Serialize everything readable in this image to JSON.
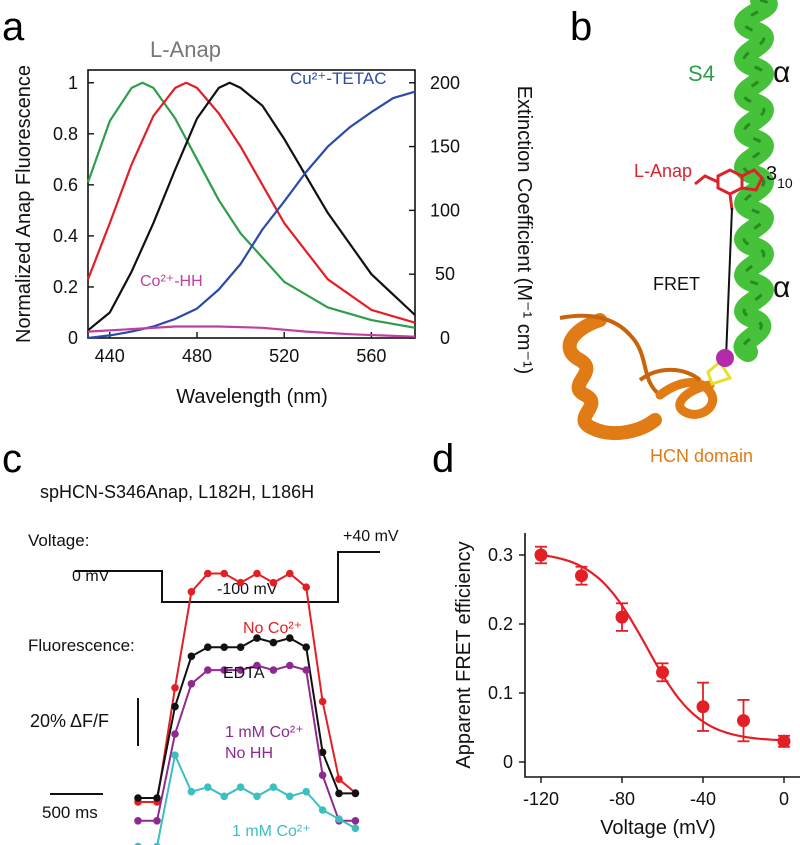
{
  "panel_labels": {
    "a": "a",
    "b": "b",
    "c": "c",
    "d": "d"
  },
  "colors": {
    "green": "#2e9e4a",
    "red": "#e31f26",
    "black": "#111111",
    "blue": "#2b4ba6",
    "magenta": "#c03fa0",
    "purple": "#8e2a8f",
    "cyan": "#3bbfbf",
    "orange": "#e07b16",
    "helix_green": "#3cbf2f",
    "anap_red": "#d9242b"
  },
  "panel_a": {
    "title": "L-Anap",
    "xlabel": "Wavelength (nm)",
    "ylabel_left": "Normalized Anap Fluorescence",
    "ylabel_right": "Extinction Coefficient (M⁻¹ cm⁻¹)",
    "label_cu": "Cu²⁺-TETAC",
    "label_co": "Co²⁺-HH",
    "x_ticks": [
      "440",
      "480",
      "520",
      "560"
    ],
    "y_left_ticks": [
      "0",
      "0.2",
      "0.4",
      "0.6",
      "0.8",
      "1"
    ],
    "y_right_ticks": [
      "0",
      "50",
      "100",
      "150",
      "200"
    ]
  },
  "panel_b": {
    "label_s4": "S4",
    "label_alpha_top": "α",
    "label_310_main": "3",
    "label_310_sub": "10",
    "label_alpha_bottom": "α",
    "label_anap": "L-Anap",
    "label_fret": "FRET",
    "label_hcn": "HCN domain"
  },
  "panel_c": {
    "construct": "spHCN-S346Anap, L182H, L186H",
    "voltage_label": "Voltage:",
    "v_hold": "0 mV",
    "v_step": "-100 mV",
    "v_post": "+40 mV",
    "fluorescence_label": "Fluorescence:",
    "label_noco": "No Co²⁺",
    "label_edta": "EDTA",
    "label_1mm_nohh_1": "1 mM Co²⁺",
    "label_1mm_nohh_2": "No HH",
    "label_1mm": "1 mM Co²⁺",
    "scale_y": "20% ΔF/F",
    "scale_x": "500 ms"
  },
  "chart_data": [
    {
      "panel": "a",
      "type": "line",
      "title": "L-Anap",
      "xlabel": "Wavelength (nm)",
      "ylabel": "Normalized Anap Fluorescence",
      "ylabel_right": "Extinction Coefficient (M-1 cm-1)",
      "xlim": [
        430,
        580
      ],
      "ylim": [
        0,
        1.05
      ],
      "ylim_right": [
        0,
        210
      ],
      "series": [
        {
          "color": "green",
          "axis": "left",
          "x": [
            430,
            440,
            450,
            455,
            460,
            470,
            480,
            490,
            500,
            520,
            540,
            560,
            580
          ],
          "values": [
            0.61,
            0.85,
            0.98,
            1.0,
            0.98,
            0.86,
            0.7,
            0.54,
            0.41,
            0.22,
            0.12,
            0.07,
            0.04
          ]
        },
        {
          "color": "red",
          "axis": "left",
          "x": [
            430,
            440,
            450,
            460,
            470,
            475,
            480,
            490,
            500,
            520,
            540,
            560,
            580
          ],
          "values": [
            0.23,
            0.45,
            0.68,
            0.87,
            0.98,
            1.0,
            0.98,
            0.88,
            0.75,
            0.45,
            0.23,
            0.11,
            0.06
          ]
        },
        {
          "color": "black",
          "axis": "left",
          "x": [
            430,
            440,
            450,
            460,
            470,
            480,
            490,
            495,
            500,
            510,
            520,
            540,
            560,
            580
          ],
          "values": [
            0.03,
            0.1,
            0.26,
            0.45,
            0.66,
            0.86,
            0.98,
            1.0,
            0.98,
            0.91,
            0.78,
            0.49,
            0.25,
            0.09
          ]
        },
        {
          "name": "Cu²⁺-TETAC",
          "color": "blue",
          "axis": "right",
          "x": [
            430,
            440,
            450,
            460,
            470,
            480,
            490,
            500,
            510,
            520,
            530,
            540,
            550,
            560,
            570,
            580
          ],
          "values": [
            0,
            2,
            5,
            9,
            15,
            23,
            38,
            58,
            85,
            107,
            130,
            150,
            165,
            177,
            188,
            193
          ]
        },
        {
          "name": "Co²⁺-HH",
          "color": "magenta",
          "axis": "right",
          "x": [
            430,
            450,
            470,
            490,
            510,
            530,
            550,
            580
          ],
          "values": [
            5,
            7,
            9,
            9,
            8,
            5,
            3,
            1
          ]
        }
      ]
    },
    {
      "panel": "c",
      "type": "line",
      "note": "fluorescence traces, relative dF/F",
      "x_ms": [
        0,
        100,
        200,
        300,
        400,
        500,
        600,
        700,
        800,
        900,
        1000,
        1100,
        1200,
        1300
      ],
      "series": [
        {
          "name": "No Co²⁺",
          "color": "red",
          "values": [
            0,
            0,
            25,
            46,
            50,
            50,
            48,
            50,
            48,
            50,
            47,
            22,
            5,
            2
          ]
        },
        {
          "name": "EDTA",
          "color": "black",
          "values": [
            0,
            0,
            20,
            31,
            33,
            33,
            33,
            35,
            34,
            35,
            33,
            10,
            1,
            1
          ]
        },
        {
          "name": "1 mM Co²⁺ No HH",
          "color": "purple",
          "values": [
            -5,
            -5,
            14,
            25,
            28,
            28,
            28,
            29,
            28,
            29,
            28,
            5,
            -5,
            -5
          ]
        },
        {
          "name": "1 mM Co²⁺",
          "color": "cyan",
          "values": [
            -8,
            -8,
            12,
            4,
            5,
            3,
            5,
            3,
            5,
            3,
            4,
            0,
            -2,
            -4
          ]
        }
      ],
      "voltage_protocol": [
        "0 mV",
        "-100 mV",
        "+40 mV"
      ]
    },
    {
      "panel": "d",
      "type": "scatter",
      "xlabel": "Voltage (mV)",
      "ylabel": "Apparent FRET efficiency",
      "xlim": [
        -125,
        5
      ],
      "ylim": [
        -0.01,
        0.34
      ],
      "x_ticks": [
        "-120",
        "-80",
        "-40",
        "0"
      ],
      "y_ticks": [
        "0",
        "0.1",
        "0.2",
        "0.3"
      ],
      "x": [
        -120,
        -100,
        -80,
        -60,
        -40,
        -20,
        0
      ],
      "values": [
        0.3,
        0.27,
        0.21,
        0.13,
        0.08,
        0.06,
        0.03
      ],
      "errors": [
        0.012,
        0.013,
        0.02,
        0.013,
        0.035,
        0.03,
        0.008
      ],
      "fit": {
        "type": "boltzmann",
        "top": 0.305,
        "bottom": 0.03,
        "v_half": -68,
        "slope": 13
      }
    }
  ]
}
